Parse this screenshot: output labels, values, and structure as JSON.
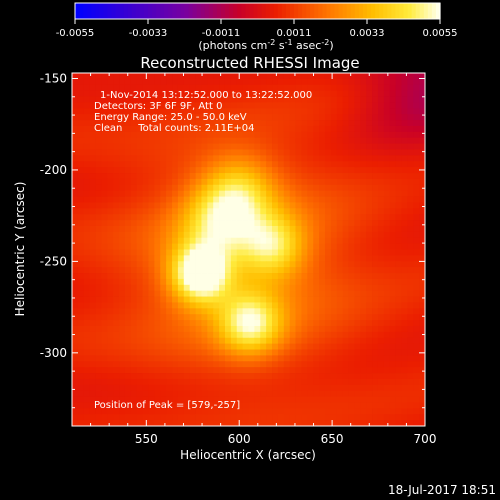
{
  "colorbar": {
    "ticks": [
      "-0.0055",
      "-0.0033",
      "-0.0011",
      "0.0011",
      "0.0033",
      "0.0055"
    ],
    "tick_values": [
      -0.0055,
      -0.0033,
      -0.0011,
      0.0011,
      0.0033,
      0.0055
    ],
    "unit_prefix": "(photons cm",
    "unit_exp1": "-2",
    "unit_mid": " s",
    "unit_exp2": "-1",
    "unit_mid2": " asec",
    "unit_exp3": "-2",
    "unit_suffix": ")"
  },
  "info": {
    "line1": "1-Nov-2014 13:12:52.000 to 13:22:52.000",
    "line2": "Detectors: 3F 6F 9F, Att 0",
    "line3": "Energy Range: 25.0 - 50.0 keV",
    "line4": "Clean     Total counts: 2.11E+04",
    "peak": "Position of Peak = [579,-257]"
  },
  "footer": {
    "timestamp": "18-Jul-2017 18:51"
  },
  "colors": {
    "background": "#000000",
    "text": "#ffffff"
  },
  "chart_data": {
    "type": "heatmap",
    "title": "Reconstructed RHESSI Image",
    "xlabel": "Heliocentric X (arcsec)",
    "ylabel": "Heliocentric Y (arcsec)",
    "xlim": [
      510,
      700
    ],
    "ylim": [
      -340,
      -147
    ],
    "x_ticks": [
      550,
      600,
      650,
      700
    ],
    "y_ticks": [
      -150,
      -200,
      -250,
      -300
    ],
    "x_tick_labels": [
      "550",
      "600",
      "650",
      "700"
    ],
    "y_tick_labels": [
      "-150",
      "-200",
      "-250",
      "-300"
    ],
    "colormap": "red-temperature",
    "value_range": [
      -0.0055,
      0.0055
    ],
    "peak": [
      579,
      -257
    ],
    "sources": [
      {
        "x": 579,
        "y": -257,
        "amp": 1.0,
        "sigma": 11
      },
      {
        "x": 606,
        "y": -284,
        "amp": 0.72,
        "sigma": 12
      },
      {
        "x": 600,
        "y": -212,
        "amp": 0.55,
        "sigma": 14
      },
      {
        "x": 618,
        "y": -242,
        "amp": 0.55,
        "sigma": 12
      },
      {
        "x": 588,
        "y": -228,
        "amp": 0.45,
        "sigma": 14
      },
      {
        "x": 600,
        "y": -250,
        "amp": 0.45,
        "sigma": 40
      }
    ]
  }
}
